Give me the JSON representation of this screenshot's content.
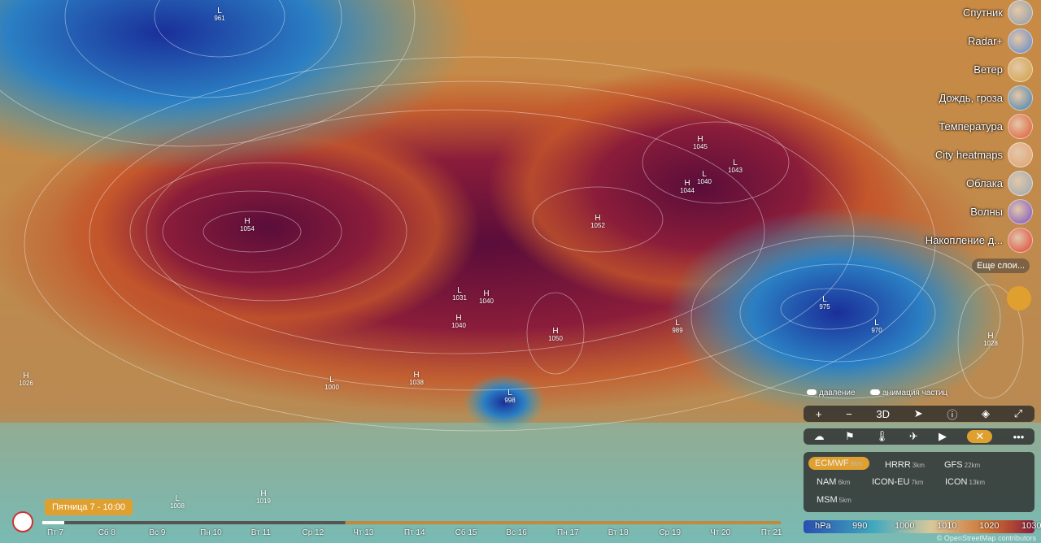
{
  "layers": [
    "Спутник",
    "Radar+",
    "Ветер",
    "Дождь, гроза",
    "Температура",
    "City heatmaps",
    "Облака",
    "Волны",
    "Накопление д..."
  ],
  "more_layers": "Еще слои...",
  "toggles": [
    "давление",
    "анимация частиц"
  ],
  "toolbar": [
    "+",
    "−",
    "3D"
  ],
  "models": [
    {
      "name": "ECMWF",
      "res": "9km"
    },
    {
      "name": "HRRR",
      "res": "3km"
    },
    {
      "name": "GFS",
      "res": "22km"
    },
    {
      "name": "NAM",
      "res": "6km"
    },
    {
      "name": "ICON-EU",
      "res": "7km"
    },
    {
      "name": "ICON",
      "res": "13km"
    },
    {
      "name": "MSM",
      "res": "5km"
    }
  ],
  "legend": {
    "unit": "hPa",
    "values": [
      "990",
      "1000",
      "1010",
      "1020",
      "1030"
    ]
  },
  "timeline": {
    "current": "Пятница 7 - 10:00",
    "days": [
      "Пт 7",
      "Сб 8",
      "Вс 9",
      "Пн 10",
      "Вт 11",
      "Ср 12",
      "Чт 13",
      "Пт 14",
      "Сб 15",
      "Вс 16",
      "Пн 17",
      "Вт 18",
      "Ср 19",
      "Чт 20",
      "Пт 21"
    ]
  },
  "attribution": "© OpenStreetMap contributors",
  "pressure_centers": [
    {
      "kind": "L",
      "value": "961"
    },
    {
      "kind": "H",
      "value": "1054"
    },
    {
      "kind": "H",
      "value": "1052"
    },
    {
      "kind": "H",
      "value": "1045"
    },
    {
      "kind": "L",
      "value": "1043"
    },
    {
      "kind": "H",
      "value": "1044"
    },
    {
      "kind": "L",
      "value": "1040"
    },
    {
      "kind": "L",
      "value": "1031"
    },
    {
      "kind": "H",
      "value": "1040"
    },
    {
      "kind": "H",
      "value": "1040"
    },
    {
      "kind": "H",
      "value": "1050"
    },
    {
      "kind": "H",
      "value": "1038"
    },
    {
      "kind": "L",
      "value": "998"
    },
    {
      "kind": "L",
      "value": "989"
    },
    {
      "kind": "L",
      "value": "975"
    },
    {
      "kind": "L",
      "value": "970"
    },
    {
      "kind": "H",
      "value": "1028"
    },
    {
      "kind": "H",
      "value": "1026"
    },
    {
      "kind": "L",
      "value": "1000"
    },
    {
      "kind": "L",
      "value": "1008"
    },
    {
      "kind": "H",
      "value": "1019"
    }
  ]
}
